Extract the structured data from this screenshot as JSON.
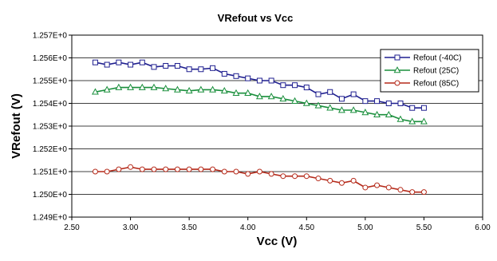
{
  "chart_data": {
    "type": "line",
    "title": "VRefout vs Vcc",
    "xlabel": "Vcc (V)",
    "ylabel": "VRefout (V)",
    "xlim": [
      2.5,
      6.0
    ],
    "ylim": [
      1.249,
      1.257
    ],
    "x_ticks": [
      2.5,
      3.0,
      3.5,
      4.0,
      4.5,
      5.0,
      5.5,
      6.0
    ],
    "x_tick_labels": [
      "2.50",
      "3.00",
      "3.50",
      "4.00",
      "4.50",
      "5.00",
      "5.50",
      "6.00"
    ],
    "y_ticks": [
      1.249,
      1.25,
      1.251,
      1.252,
      1.253,
      1.254,
      1.255,
      1.256,
      1.257
    ],
    "y_tick_labels": [
      "1.249E+0",
      "1.250E+0",
      "1.251E+0",
      "1.252E+0",
      "1.253E+0",
      "1.254E+0",
      "1.255E+0",
      "1.256E+0",
      "1.257E+0"
    ],
    "grid": "horizontal",
    "legend_position": "top-right",
    "x": [
      2.7,
      2.8,
      2.9,
      3.0,
      3.1,
      3.2,
      3.3,
      3.4,
      3.5,
      3.6,
      3.7,
      3.8,
      3.9,
      4.0,
      4.1,
      4.2,
      4.3,
      4.4,
      4.5,
      4.6,
      4.7,
      4.8,
      4.9,
      5.0,
      5.1,
      5.2,
      5.3,
      5.4,
      5.5
    ],
    "series": [
      {
        "name": "Refout (-40C)",
        "color": "#1f1f8f",
        "marker": "square",
        "values": [
          1.2558,
          1.2557,
          1.2558,
          1.2557,
          1.2558,
          1.2556,
          1.25565,
          1.25565,
          1.2555,
          1.2555,
          1.25555,
          1.2553,
          1.2552,
          1.2551,
          1.255,
          1.255,
          1.2548,
          1.2548,
          1.2547,
          1.2544,
          1.2545,
          1.2542,
          1.2544,
          1.2541,
          1.2541,
          1.254,
          1.254,
          1.2538,
          1.2538
        ]
      },
      {
        "name": "Refout (25C)",
        "color": "#1a8f3c",
        "marker": "triangle",
        "values": [
          1.2545,
          1.2546,
          1.2547,
          1.2547,
          1.2547,
          1.2547,
          1.25465,
          1.2546,
          1.25455,
          1.2546,
          1.2546,
          1.25455,
          1.25445,
          1.25445,
          1.2543,
          1.2543,
          1.2542,
          1.2541,
          1.254,
          1.2539,
          1.2538,
          1.2537,
          1.2537,
          1.2536,
          1.2535,
          1.2535,
          1.2533,
          1.2532,
          1.2532
        ]
      },
      {
        "name": "Refout (85C)",
        "color": "#b52a1a",
        "marker": "circle",
        "values": [
          1.251,
          1.251,
          1.2511,
          1.2512,
          1.2511,
          1.2511,
          1.2511,
          1.2511,
          1.2511,
          1.2511,
          1.2511,
          1.251,
          1.251,
          1.2509,
          1.251,
          1.2509,
          1.2508,
          1.2508,
          1.2508,
          1.2507,
          1.2506,
          1.2505,
          1.2506,
          1.2503,
          1.2504,
          1.2503,
          1.2502,
          1.2501,
          1.2501
        ]
      }
    ]
  }
}
